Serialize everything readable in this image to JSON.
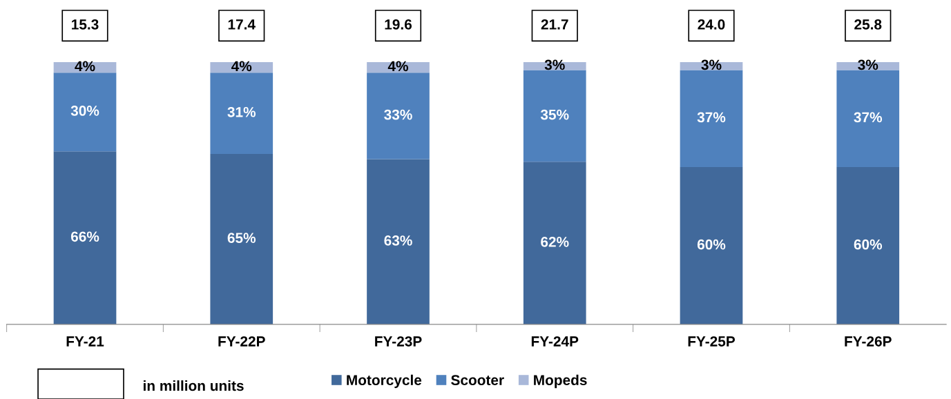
{
  "chart_data": {
    "type": "bar",
    "stacked": true,
    "legend": "bottom",
    "grid": false,
    "categories": [
      "FY-21",
      "FY-22P",
      "FY-23P",
      "FY-24P",
      "FY-25P",
      "FY-26P"
    ],
    "series": [
      {
        "name": "Motorcycle",
        "color": "#41699b",
        "values": [
          66,
          65,
          63,
          62,
          60,
          60
        ],
        "value_labels": [
          "66%",
          "65%",
          "63%",
          "62%",
          "60%",
          "60%"
        ]
      },
      {
        "name": "Scooter",
        "color": "#4f81bd",
        "values": [
          30,
          31,
          33,
          35,
          37,
          37
        ],
        "value_labels": [
          "30%",
          "31%",
          "33%",
          "35%",
          "37%",
          "37%"
        ]
      },
      {
        "name": "Mopeds",
        "color": "#a9b8d9",
        "values": [
          4,
          4,
          4,
          3,
          3,
          3
        ],
        "value_labels": [
          "4%",
          "4%",
          "4%",
          "3%",
          "3%",
          "3%"
        ]
      }
    ],
    "annotations": [
      {
        "text": "15.3",
        "x": "FY-21",
        "y": 100
      },
      {
        "text": "17.4",
        "x": "FY-22P",
        "y": 100
      },
      {
        "text": "19.6",
        "x": "FY-23P",
        "y": 100
      },
      {
        "text": "21.7",
        "x": "FY-24P",
        "y": 100
      },
      {
        "text": "24.0",
        "x": "FY-25P",
        "y": 100
      },
      {
        "text": "25.8",
        "x": "FY-26P",
        "y": 100
      },
      "in million units"
    ]
  }
}
